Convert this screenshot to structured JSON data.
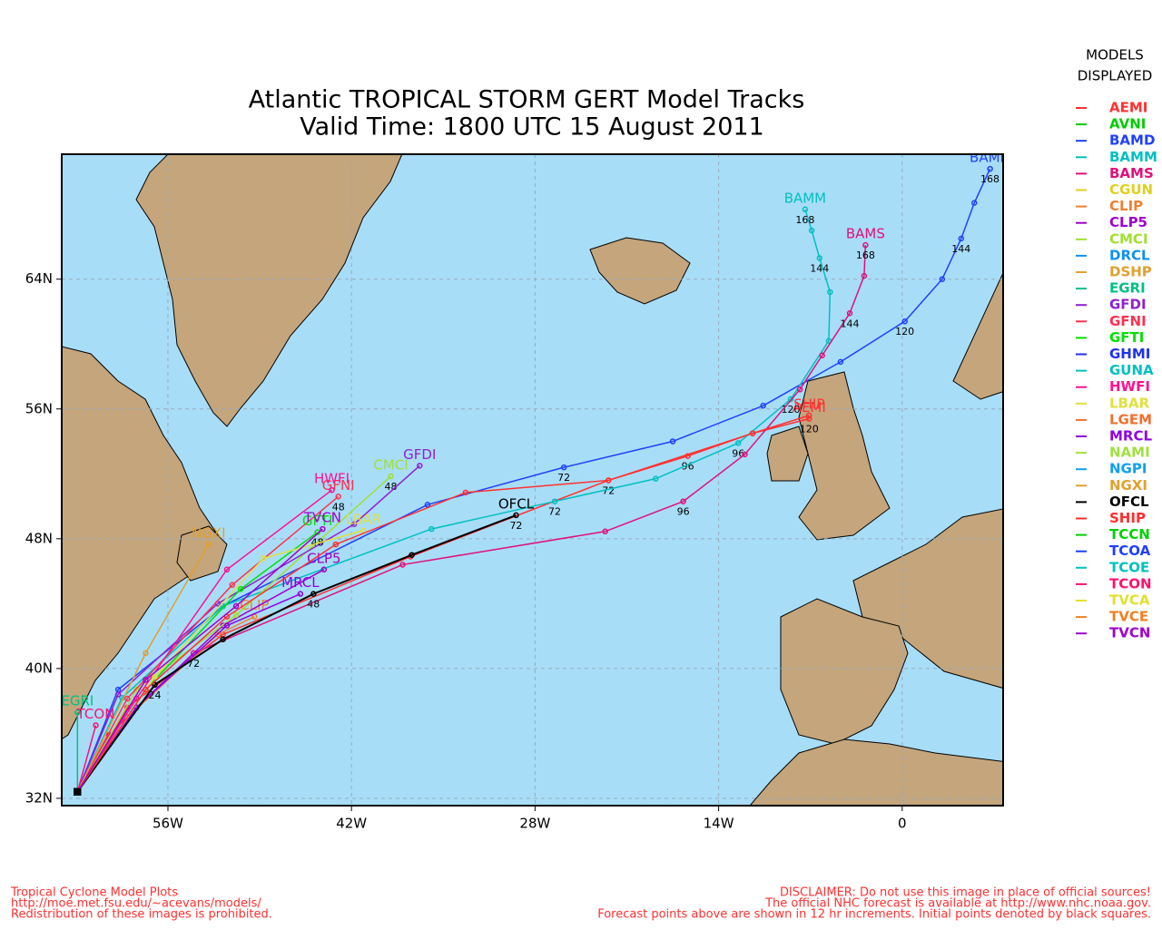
{
  "chart_data": {
    "type": "track-map",
    "title": [
      "Atlantic TROPICAL STORM GERT Model Tracks",
      "Valid Time: 1800 UTC 15 August 2011"
    ],
    "legend_title": [
      "MODELS",
      "DISPLAYED"
    ],
    "xlim": [
      -64.1,
      7.7
    ],
    "ylim": [
      31.55,
      71.7
    ],
    "xticks": [
      {
        "value": -56,
        "label": "56W"
      },
      {
        "value": -42,
        "label": "42W"
      },
      {
        "value": -28,
        "label": "28W"
      },
      {
        "value": -14,
        "label": "14W"
      },
      0
    ],
    "yticks": [
      {
        "value": 32,
        "label": "32N"
      },
      {
        "value": 40,
        "label": "40N"
      },
      {
        "value": 48,
        "label": "48N"
      },
      {
        "value": 56,
        "label": "56N"
      },
      {
        "value": 64,
        "label": "64N"
      }
    ],
    "grid": true,
    "series": [
      {
        "name": "AEMI",
        "color": "#ff3030",
        "lon": [
          -62.9,
          -59.1,
          -51.8,
          -37.5,
          -22.4,
          -16.35,
          -11.4,
          -7.1
        ],
        "lat": [
          32.4,
          37.6,
          42.1,
          46.9,
          51.6,
          53.1,
          54.5,
          55.4
        ],
        "hours": [
          null,
          null,
          null,
          null,
          72,
          96,
          null,
          120
        ]
      },
      {
        "name": "AVNI",
        "color": "#00cc00"
      },
      {
        "name": "BAMD",
        "color": "#2040ff",
        "lon": [
          -62.9,
          -59.8,
          -51.8,
          -36.2,
          -25.8,
          -17.5,
          -10.6,
          -4.7,
          0.2,
          3.05,
          4.5,
          5.5,
          6.7
        ],
        "lat": [
          32.4,
          38.7,
          43.85,
          50.1,
          52.4,
          54.0,
          56.2,
          58.9,
          61.4,
          64.0,
          66.5,
          68.7,
          70.8
        ],
        "hours": [
          null,
          null,
          null,
          null,
          72,
          null,
          null,
          null,
          120,
          null,
          144,
          null,
          168
        ]
      },
      {
        "name": "BAMM",
        "color": "#00c0c0",
        "lon": [
          -62.9,
          -59.5,
          -51.8,
          -35.9,
          -26.5,
          -18.8,
          -12.5,
          -8.5,
          -5.6,
          -5.5,
          -6.3,
          -6.9,
          -7.4
        ],
        "lat": [
          32.4,
          38.2,
          43.85,
          48.6,
          50.3,
          51.7,
          53.9,
          56.6,
          60.2,
          63.2,
          65.3,
          67.0,
          68.3
        ],
        "hours": [
          null,
          null,
          null,
          null,
          72,
          null,
          96,
          120,
          null,
          null,
          144,
          null,
          168
        ]
      },
      {
        "name": "BAMS",
        "color": "#e0107a",
        "lon": [
          -62.9,
          -60.5,
          -54.05,
          -38.1,
          -22.65,
          -16.7,
          -12.0,
          -7.8,
          -6.1,
          -4.0,
          -2.9,
          -2.8
        ],
        "lat": [
          32.4,
          35.9,
          40.95,
          46.4,
          48.45,
          50.3,
          53.2,
          57.2,
          59.3,
          61.9,
          64.2,
          66.1
        ],
        "hours": [
          null,
          null,
          72,
          null,
          null,
          96,
          null,
          null,
          null,
          144,
          null,
          168
        ]
      },
      {
        "name": "CGUN",
        "color": "#e0d020"
      },
      {
        "name": "CLIP",
        "color": "#f08030",
        "lon": [
          -62.9,
          -59.1,
          -52.2,
          -49.4
        ],
        "lat": [
          32.4,
          37.0,
          42.1,
          43.2
        ]
      },
      {
        "name": "CLP5",
        "color": "#a000d0",
        "lon": [
          -62.9,
          -58.4,
          -51.8,
          -44.1
        ],
        "lat": [
          32.4,
          37.6,
          42.65,
          46.1
        ]
      },
      {
        "name": "CMCI",
        "color": "#a0e030",
        "lon": [
          -62.9,
          -58.4,
          -50.8,
          -39.0
        ],
        "lat": [
          32.4,
          38.7,
          43.3,
          51.85
        ],
        "hours": [
          null,
          null,
          null,
          48
        ]
      },
      {
        "name": "DRCL",
        "color": "#1090f0"
      },
      {
        "name": "DSHP",
        "color": "#e0a030"
      },
      {
        "name": "EGRI",
        "color": "#00c080",
        "lon": [
          -62.9,
          -62.9
        ],
        "lat": [
          32.4,
          37.3
        ]
      },
      {
        "name": "GFDI",
        "color": "#9020d0",
        "lon": [
          -62.9,
          -59.8,
          -52.2,
          -41.8,
          -36.8
        ],
        "lat": [
          32.4,
          38.4,
          44.0,
          48.9,
          52.5
        ]
      },
      {
        "name": "GFNI",
        "color": "#ff3050",
        "lon": [
          -62.9,
          -59.1,
          -51.1,
          -43.0
        ],
        "lat": [
          32.4,
          38.15,
          45.15,
          50.6
        ],
        "hours": [
          null,
          null,
          null,
          48
        ]
      },
      {
        "name": "GFTI",
        "color": "#00e000",
        "lon": [
          -62.9,
          -57.7,
          -50.45,
          -44.6
        ],
        "lat": [
          32.4,
          38.7,
          44.9,
          48.4
        ],
        "hours": [
          null,
          null,
          null,
          48
        ]
      },
      {
        "name": "GHMI",
        "color": "#2030f0"
      },
      {
        "name": "GUNA",
        "color": "#00c0c0"
      },
      {
        "name": "HWFI",
        "color": "#ff1090",
        "lon": [
          -62.9,
          -58.4,
          -51.5,
          -43.5
        ],
        "lat": [
          32.4,
          38.15,
          46.1,
          51.0
        ]
      },
      {
        "name": "LBAR",
        "color": "#e0e040",
        "lon": [
          -62.9,
          -57.0,
          -48.7,
          -41.1
        ],
        "lat": [
          32.4,
          39.5,
          46.8,
          48.5
        ]
      },
      {
        "name": "LGEM",
        "color": "#f07030"
      },
      {
        "name": "MRCL",
        "color": "#9000e0",
        "lon": [
          -62.9,
          -58.4,
          -51.5,
          -45.9
        ],
        "lat": [
          32.4,
          37.6,
          42.65,
          44.6
        ]
      },
      {
        "name": "NAMI",
        "color": "#a0e040"
      },
      {
        "name": "NGPI",
        "color": "#10a0f0"
      },
      {
        "name": "NGXI",
        "color": "#e0a030",
        "lon": [
          -62.9,
          -57.7,
          -52.9
        ],
        "lat": [
          32.4,
          40.95,
          47.65
        ]
      },
      {
        "name": "OFCL",
        "color": "#000000",
        "lon": [
          -62.9,
          -57.0,
          -51.8,
          -44.9,
          -37.4,
          -29.45
        ],
        "lat": [
          32.4,
          39.0,
          41.8,
          44.6,
          47.0,
          49.45
        ],
        "hours": [
          null,
          24,
          null,
          48,
          null,
          72
        ]
      },
      {
        "name": "SHIP",
        "color": "#ff3030",
        "lon": [
          -62.9,
          -57.7,
          -51.5,
          -43.2,
          -33.3,
          -22.4,
          -11.4,
          -7.1
        ],
        "lat": [
          32.4,
          38.7,
          43.2,
          47.65,
          50.85,
          51.6,
          54.5,
          55.6
        ]
      },
      {
        "name": "TCCN",
        "color": "#00d000"
      },
      {
        "name": "TCOA",
        "color": "#2040ff"
      },
      {
        "name": "TCOE",
        "color": "#00c0c0"
      },
      {
        "name": "TCON",
        "color": "#ff1070",
        "lon": [
          -62.9,
          -61.5
        ],
        "lat": [
          32.4,
          36.5
        ]
      },
      {
        "name": "TVCA",
        "color": "#e0e030"
      },
      {
        "name": "TVCE",
        "color": "#f08020"
      },
      {
        "name": "TVCN",
        "color": "#a000d0",
        "lon": [
          -62.9,
          -57.7,
          -50.8,
          -44.2
        ],
        "lat": [
          32.4,
          39.3,
          43.85,
          48.6
        ]
      }
    ],
    "footer_left": [
      "Tropical Cyclone Model Plots",
      "http://moe.met.fsu.edu/~acevans/models/",
      "Redistribution of these images is prohibited."
    ],
    "footer_right": [
      "DISCLAIMER: Do not use this image in place of official sources!",
      "The official NHC forecast is available at http://www.nhc.noaa.gov.",
      "Forecast points above are shown in 12 hr increments. Initial points denoted by black squares."
    ]
  }
}
